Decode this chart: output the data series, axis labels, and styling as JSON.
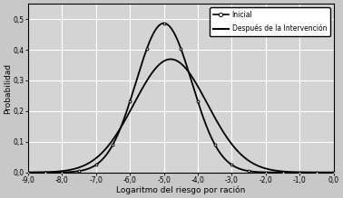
{
  "xlabel": "Logaritmo del riesgo por ración",
  "ylabel": "Probabilidad",
  "xlim": [
    -9.0,
    0.0
  ],
  "ylim": [
    0.0,
    0.55
  ],
  "xticks": [
    -9.0,
    -8.0,
    -7.0,
    -6.0,
    -5.0,
    -4.0,
    -3.0,
    -2.0,
    -1.0,
    0.0
  ],
  "yticks": [
    0.0,
    0.1,
    0.2,
    0.3,
    0.4,
    0.5
  ],
  "curve1_label": "Inicial",
  "curve1_mu": -5.0,
  "curve1_sigma": 0.82,
  "curve2_label": "Después de la Intervención",
  "curve2_mu": -4.8,
  "curve2_sigma": 1.08,
  "bg_color": "#c8c8c8",
  "plot_bg_color": "#d4d4d4",
  "line_color": "#000000",
  "grid_color": "#ffffff",
  "legend_fontsize": 5.5,
  "axis_fontsize": 6.5,
  "tick_fontsize": 5.5
}
